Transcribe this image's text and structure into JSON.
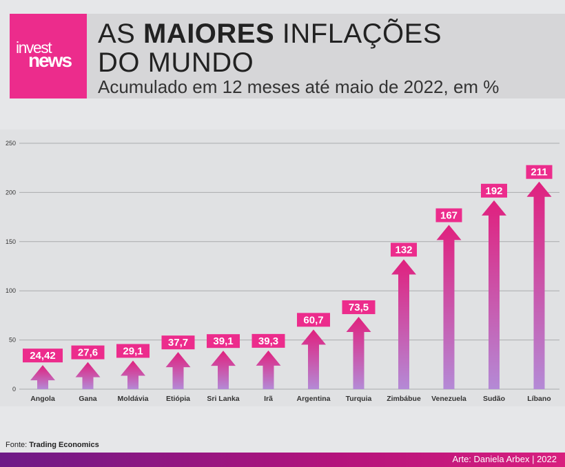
{
  "brand": {
    "logo_line1": "invest",
    "logo_line2": "news"
  },
  "header": {
    "title_part1": "AS ",
    "title_bold": "MAIORES",
    "title_part2": " INFLAÇÕES",
    "title_line2": "DO MUNDO",
    "subtitle": "Acumulado em 12 meses até maio de 2022, em %"
  },
  "source": {
    "label": "Fonte: ",
    "name": "Trading Economics"
  },
  "footer": {
    "credit": "Arte: Daniela Arbex | 2022"
  },
  "colors": {
    "accent": "#ec2c8c",
    "arrow_top": "#e0207e",
    "arrow_bottom": "#b48ad6",
    "grid": "#a9aaac"
  },
  "chart_data": {
    "type": "bar",
    "title": "As maiores inflações do mundo",
    "subtitle": "Acumulado em 12 meses até maio de 2022, em %",
    "categories": [
      "Angola",
      "Gana",
      "Moldávia",
      "Etiópia",
      "Sri Lanka",
      "Irã",
      "Argentina",
      "Turquia",
      "Zimbábue",
      "Venezuela",
      "Sudão",
      "Líbano"
    ],
    "values": [
      24.42,
      27.6,
      29.1,
      37.7,
      39.1,
      39.3,
      60.7,
      73.5,
      132,
      167,
      192,
      211
    ],
    "value_labels": [
      "24,42",
      "27,6",
      "29,1",
      "37,7",
      "39,1",
      "39,3",
      "60,7",
      "73,5",
      "132",
      "167",
      "192",
      "211"
    ],
    "ylim": [
      0,
      250
    ],
    "yticks": [
      0,
      50,
      100,
      150,
      200,
      250
    ],
    "ytick_labels": [
      "0",
      "50",
      "100",
      "150",
      "200",
      "250"
    ],
    "xlabel": "",
    "ylabel": "",
    "grid": true
  }
}
